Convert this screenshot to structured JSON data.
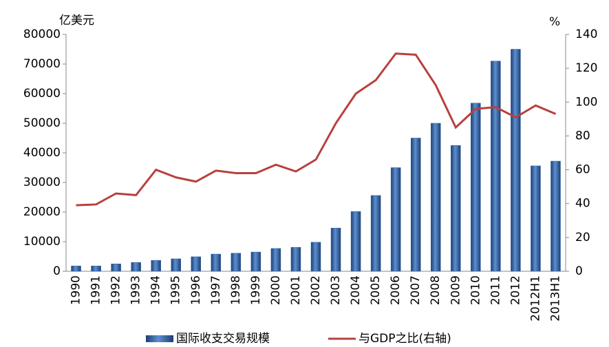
{
  "chart_data": {
    "type": "bar",
    "y_label": "亿美元",
    "y2_label": "%",
    "categories": [
      "1990",
      "1991",
      "1992",
      "1993",
      "1994",
      "1995",
      "1996",
      "1997",
      "1998",
      "1999",
      "2000",
      "2001",
      "2002",
      "2003",
      "2004",
      "2005",
      "2006",
      "2007",
      "2008",
      "2009",
      "2010",
      "2011",
      "2012",
      "2012H1",
      "2013H1"
    ],
    "series": [
      {
        "name": "国际收支交易规模",
        "type": "bar",
        "color": "#2f63a8",
        "values": [
          1800,
          1800,
          2500,
          3000,
          3700,
          4200,
          4900,
          5800,
          6100,
          6500,
          7700,
          8100,
          9800,
          14600,
          20200,
          25600,
          35000,
          45000,
          50000,
          42500,
          56800,
          71000,
          75000,
          35600,
          37200
        ]
      },
      {
        "name": "与GDP之比(右轴)",
        "type": "line",
        "axis": "y2",
        "color": "#b8403e",
        "values": [
          39,
          39.5,
          46,
          45,
          60,
          55.5,
          53,
          59.5,
          58,
          58,
          63,
          59,
          66,
          87.5,
          105,
          113,
          128.7,
          128,
          110,
          85,
          96,
          97,
          91,
          98,
          93
        ]
      }
    ],
    "ylim": [
      0,
      80000
    ],
    "yticks": [
      0,
      10000,
      20000,
      30000,
      40000,
      50000,
      60000,
      70000,
      80000
    ],
    "y2lim": [
      0,
      140
    ],
    "y2ticks": [
      0,
      20,
      40,
      60,
      80,
      100,
      120,
      140
    ],
    "grid": false,
    "legend": "bottom"
  }
}
